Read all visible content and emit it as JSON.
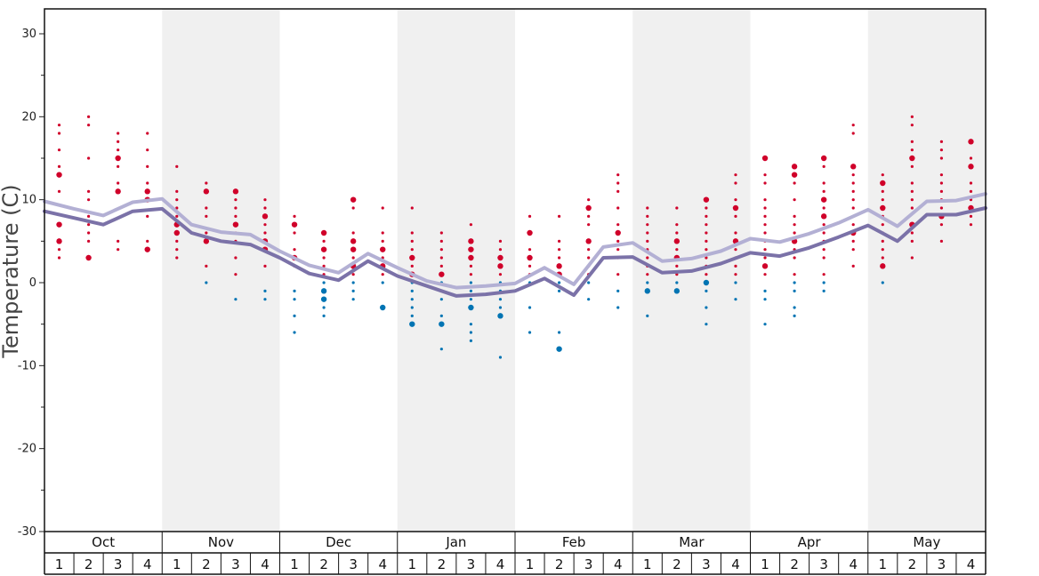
{
  "chart_data": {
    "type": "line",
    "ylabel": "Temperature (C)",
    "ylim": [
      -30,
      33
    ],
    "yticks": [
      30,
      20,
      10,
      0,
      -10,
      -20,
      -30
    ],
    "months": [
      "Oct",
      "Nov",
      "Dec",
      "Jan",
      "Feb",
      "Mar",
      "Apr",
      "May"
    ],
    "weeks": [
      "1",
      "2",
      "3",
      "4"
    ],
    "shaded_months": [
      "Nov",
      "Jan",
      "Mar",
      "May"
    ],
    "colors": {
      "upper_line": "#b3b0d4",
      "lower_line": "#7b72a8",
      "warm_dots": "#d0002a",
      "cold_dots": "#0074b3",
      "shade": "#f0f0f0"
    },
    "series": [
      {
        "values": [
          9.8,
          8.9,
          8.1,
          9.7,
          10.1,
          7.0,
          6.1,
          5.8,
          3.8,
          2.1,
          1.2,
          3.5,
          1.8,
          0.2,
          -0.6,
          -0.4,
          -0.1,
          1.8,
          -0.2,
          4.3,
          4.8,
          2.6,
          2.9,
          3.8,
          5.3,
          4.9,
          5.9,
          7.2,
          8.8,
          6.8,
          9.8,
          9.9,
          10.7
        ]
      },
      {
        "values": [
          8.6,
          7.8,
          7.0,
          8.6,
          8.9,
          6.0,
          5.0,
          4.6,
          3.0,
          1.1,
          0.3,
          2.6,
          0.8,
          -0.4,
          -1.6,
          -1.4,
          -1.0,
          0.5,
          -1.5,
          3.0,
          3.1,
          1.2,
          1.4,
          2.3,
          3.6,
          3.2,
          4.2,
          5.5,
          6.9,
          5.0,
          8.2,
          8.2,
          9.0
        ]
      }
    ],
    "scatter": [
      {
        "week": 1,
        "temps": [
          19,
          18,
          16,
          14,
          13,
          11,
          7,
          5,
          4,
          3
        ],
        "large": [
          13,
          7,
          5
        ]
      },
      {
        "week": 2,
        "temps": [
          20,
          19,
          15,
          11,
          10,
          8,
          7,
          6,
          5,
          3
        ],
        "large": [
          3
        ]
      },
      {
        "week": 3,
        "temps": [
          18,
          17,
          16,
          15,
          14,
          12,
          11,
          5,
          4
        ],
        "large": [
          15,
          11
        ]
      },
      {
        "week": 4,
        "temps": [
          18,
          16,
          14,
          12,
          11,
          10,
          8,
          5,
          4
        ],
        "large": [
          11,
          10,
          4
        ]
      },
      {
        "week": 5,
        "temps": [
          14,
          11,
          10,
          9,
          8,
          7,
          6,
          5,
          4,
          3
        ],
        "large": [
          7,
          6
        ]
      },
      {
        "week": 6,
        "temps": [
          12,
          11,
          9,
          8,
          6,
          5,
          2,
          0
        ],
        "large": [
          11,
          5
        ]
      },
      {
        "week": 7,
        "temps": [
          11,
          10,
          9,
          8,
          7,
          6,
          5,
          3,
          1,
          -2
        ],
        "large": [
          11,
          7
        ]
      },
      {
        "week": 8,
        "temps": [
          10,
          9,
          8,
          7,
          6,
          5,
          4,
          2,
          -1,
          -2
        ],
        "large": [
          8,
          5,
          4
        ]
      },
      {
        "week": 9,
        "temps": [
          8,
          7,
          6,
          4,
          3,
          2,
          -1,
          -2,
          -4,
          -6
        ],
        "large": [
          7,
          3
        ]
      },
      {
        "week": 10,
        "temps": [
          6,
          5,
          4,
          3,
          2,
          1,
          0,
          -1,
          -2,
          -3,
          -4
        ],
        "large": [
          6,
          4,
          -1,
          -2
        ]
      },
      {
        "week": 11,
        "temps": [
          10,
          9,
          6,
          5,
          4,
          3,
          2,
          1,
          0,
          -1,
          -2
        ],
        "large": [
          10,
          5,
          4,
          2
        ]
      },
      {
        "week": 12,
        "temps": [
          9,
          6,
          5,
          4,
          3,
          2,
          1,
          0,
          -3
        ],
        "large": [
          4,
          2,
          -3
        ]
      },
      {
        "week": 13,
        "temps": [
          9,
          6,
          5,
          4,
          3,
          2,
          1,
          0,
          -1,
          -2,
          -3,
          -4,
          -5
        ],
        "large": [
          3,
          1,
          -5
        ]
      },
      {
        "week": 14,
        "temps": [
          6,
          5,
          4,
          3,
          2,
          1,
          0,
          -1,
          -2,
          -4,
          -5,
          -8
        ],
        "large": [
          1,
          -5
        ]
      },
      {
        "week": 15,
        "temps": [
          7,
          5,
          4,
          3,
          2,
          1,
          0,
          -1,
          -2,
          -3,
          -5,
          -6,
          -7
        ],
        "large": [
          5,
          4,
          3,
          -3
        ]
      },
      {
        "week": 16,
        "temps": [
          5,
          4,
          3,
          2,
          1,
          0,
          -1,
          -2,
          -3,
          -4,
          -9
        ],
        "large": [
          3,
          2,
          -4
        ]
      },
      {
        "week": 17,
        "temps": [
          8,
          6,
          4,
          3,
          2,
          1,
          0,
          -3,
          -6
        ],
        "large": [
          6,
          3
        ]
      },
      {
        "week": 18,
        "temps": [
          8,
          5,
          4,
          3,
          2,
          1,
          0,
          -1,
          -6,
          -8
        ],
        "large": [
          2,
          1,
          -8
        ]
      },
      {
        "week": 19,
        "temps": [
          10,
          9,
          8,
          7,
          5,
          4,
          3,
          2,
          1,
          0,
          -2
        ],
        "large": [
          9,
          5
        ]
      },
      {
        "week": 20,
        "temps": [
          13,
          12,
          11,
          9,
          7,
          6,
          5,
          4,
          3,
          1,
          -1,
          -3
        ],
        "large": [
          6
        ]
      },
      {
        "week": 21,
        "temps": [
          9,
          8,
          7,
          6,
          5,
          4,
          3,
          2,
          1,
          0,
          -1,
          -4
        ],
        "large": [
          -1
        ]
      },
      {
        "week": 22,
        "temps": [
          9,
          7,
          6,
          5,
          4,
          3,
          2,
          1,
          0,
          -1
        ],
        "large": [
          5,
          3,
          -1
        ]
      },
      {
        "week": 23,
        "temps": [
          10,
          9,
          8,
          7,
          6,
          5,
          4,
          3,
          2,
          1,
          0,
          -1,
          -3,
          -5
        ],
        "large": [
          10,
          0
        ]
      },
      {
        "week": 24,
        "temps": [
          13,
          12,
          10,
          9,
          8,
          6,
          5,
          4,
          3,
          2,
          1,
          0,
          -2
        ],
        "large": [
          9,
          5
        ]
      },
      {
        "week": 25,
        "temps": [
          15,
          13,
          12,
          10,
          9,
          8,
          7,
          6,
          5,
          4,
          3,
          2,
          1,
          -1,
          -2,
          -5
        ],
        "large": [
          15,
          2
        ]
      },
      {
        "week": 26,
        "temps": [
          14,
          13,
          12,
          10,
          8,
          7,
          6,
          5,
          4,
          3,
          1,
          0,
          -1,
          -3,
          -4
        ],
        "large": [
          14,
          13,
          5
        ]
      },
      {
        "week": 27,
        "temps": [
          15,
          14,
          12,
          11,
          10,
          9,
          8,
          7,
          6,
          5,
          4,
          3,
          1,
          0,
          -1
        ],
        "large": [
          15,
          10,
          8
        ]
      },
      {
        "week": 28,
        "temps": [
          19,
          18,
          14,
          13,
          12,
          11,
          10,
          9,
          8,
          7,
          6,
          5,
          4,
          2
        ],
        "large": [
          14,
          6
        ]
      },
      {
        "week": 29,
        "temps": [
          13,
          12,
          11,
          10,
          9,
          8,
          7,
          6,
          5,
          4,
          3,
          2,
          0
        ],
        "large": [
          12,
          9,
          2
        ]
      },
      {
        "week": 30,
        "temps": [
          20,
          19,
          17,
          16,
          15,
          14,
          12,
          11,
          10,
          9,
          7,
          6,
          5,
          3
        ],
        "large": [
          15,
          7
        ]
      },
      {
        "week": 31,
        "temps": [
          17,
          16,
          15,
          13,
          12,
          11,
          10,
          9,
          8,
          7,
          5
        ],
        "large": [
          8
        ]
      },
      {
        "week": 32,
        "temps": [
          17,
          15,
          14,
          12,
          11,
          10,
          9,
          8,
          7
        ],
        "large": [
          17,
          14,
          9
        ]
      }
    ]
  }
}
